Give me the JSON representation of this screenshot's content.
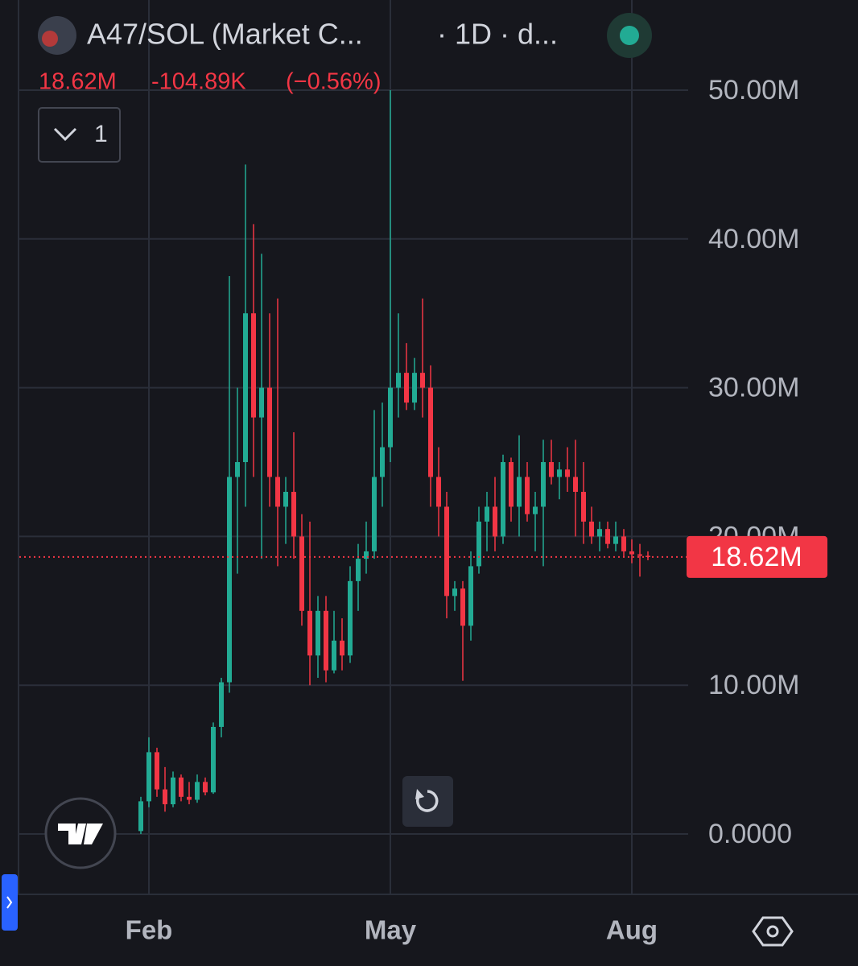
{
  "chart_data": {
    "type": "candlestick",
    "title": "A47/SOL (Market C...",
    "interval": "· 1D · d...",
    "header": {
      "price": "18.62M",
      "change": "-104.89K",
      "change_pct": "(−0.56%)"
    },
    "indicator_toggle": "1",
    "up_color": "#22ab94",
    "down_color": "#f23645",
    "grid": true,
    "ylim": [
      -4.11,
      56.06
    ],
    "yticks": [
      {
        "value": 0,
        "label": "0.0000"
      },
      {
        "value": 10,
        "label": "10.00M"
      },
      {
        "value": 20,
        "label": "20.00M"
      },
      {
        "value": 30,
        "label": "30.00M"
      },
      {
        "value": 40,
        "label": "40.00M"
      },
      {
        "value": 50,
        "label": "50.00M"
      }
    ],
    "last_price": {
      "value": 18.62,
      "label": "18.62M"
    },
    "categories": [
      null,
      "Feb",
      null,
      null,
      null,
      null,
      null,
      null,
      null,
      null,
      null,
      null,
      null,
      null,
      null,
      null,
      null,
      null,
      null,
      null,
      null,
      null,
      null,
      null,
      null,
      null,
      null,
      null,
      null,
      null,
      null,
      "May",
      null,
      null,
      null,
      null,
      null,
      null,
      null,
      null,
      null,
      null,
      null,
      null,
      null,
      null,
      null,
      null,
      null,
      null,
      null,
      null,
      null,
      null,
      null,
      null,
      null,
      null,
      null,
      null,
      null,
      "Aug",
      null,
      null
    ],
    "open": [
      0.2,
      2.2,
      5.5,
      3.0,
      2.0,
      3.8,
      2.5,
      2.3,
      3.5,
      2.8,
      7.2,
      10.2,
      24,
      25,
      35,
      28,
      30,
      24,
      22,
      23,
      20,
      15,
      12,
      15,
      11,
      13,
      12,
      17,
      18.5,
      19,
      24,
      26,
      30,
      31,
      29,
      31,
      30,
      24,
      22,
      16,
      16.5,
      14,
      18,
      21,
      22,
      20,
      25,
      22,
      24,
      21.5,
      22,
      25,
      24,
      24.5,
      24,
      23,
      21,
      20,
      20.5,
      19.5,
      20,
      19,
      18.8,
      18.7
    ],
    "high": [
      2.5,
      6.5,
      5.8,
      4.5,
      4.2,
      4.0,
      3.5,
      4.0,
      3.8,
      7.5,
      10.5,
      37.5,
      30,
      45,
      41,
      39,
      35,
      36,
      24,
      27,
      21.5,
      21,
      16,
      16,
      15,
      14.5,
      18,
      19.5,
      21,
      28.5,
      29,
      50,
      35,
      33,
      32,
      36,
      31.5,
      26,
      23,
      17,
      17,
      19,
      22,
      23,
      24,
      25.5,
      25.3,
      26.8,
      25,
      23,
      26.5,
      26.5,
      25,
      26,
      26.5,
      25,
      22,
      21,
      21,
      21,
      20.5,
      19.8,
      19.5,
      19.0
    ],
    "low": [
      0,
      1.8,
      2.5,
      1.5,
      1.8,
      2.2,
      2.0,
      2.1,
      2.6,
      2.7,
      6.5,
      9.5,
      17.5,
      22,
      24,
      18.5,
      22,
      18,
      19.5,
      18.5,
      14,
      10,
      10.5,
      10.2,
      10.8,
      11,
      11.5,
      15,
      17.5,
      18.5,
      22,
      25,
      28,
      28.5,
      28.5,
      28,
      22,
      20,
      14.5,
      15,
      10.3,
      13,
      17.5,
      19,
      19,
      19.5,
      21,
      20,
      21,
      19,
      18,
      23.5,
      22.5,
      23,
      20,
      19.5,
      19.5,
      19,
      19.2,
      19,
      18.6,
      18.2,
      17.3,
      18.4
    ],
    "close": [
      2.2,
      5.5,
      3.0,
      2.0,
      3.8,
      2.5,
      2.3,
      3.5,
      2.8,
      7.2,
      10.2,
      24,
      25,
      35,
      28,
      30,
      24,
      22,
      23,
      20,
      15,
      12,
      15,
      11,
      13,
      12,
      17,
      18.5,
      19,
      24,
      26,
      30,
      31,
      29,
      31,
      30,
      24,
      22,
      16,
      16.5,
      14,
      18,
      21,
      22,
      20,
      25,
      22,
      24,
      21.5,
      22,
      25,
      24,
      24.5,
      24,
      23,
      21,
      20,
      20.5,
      19.5,
      20,
      19,
      18.8,
      18.7,
      18.62
    ]
  }
}
